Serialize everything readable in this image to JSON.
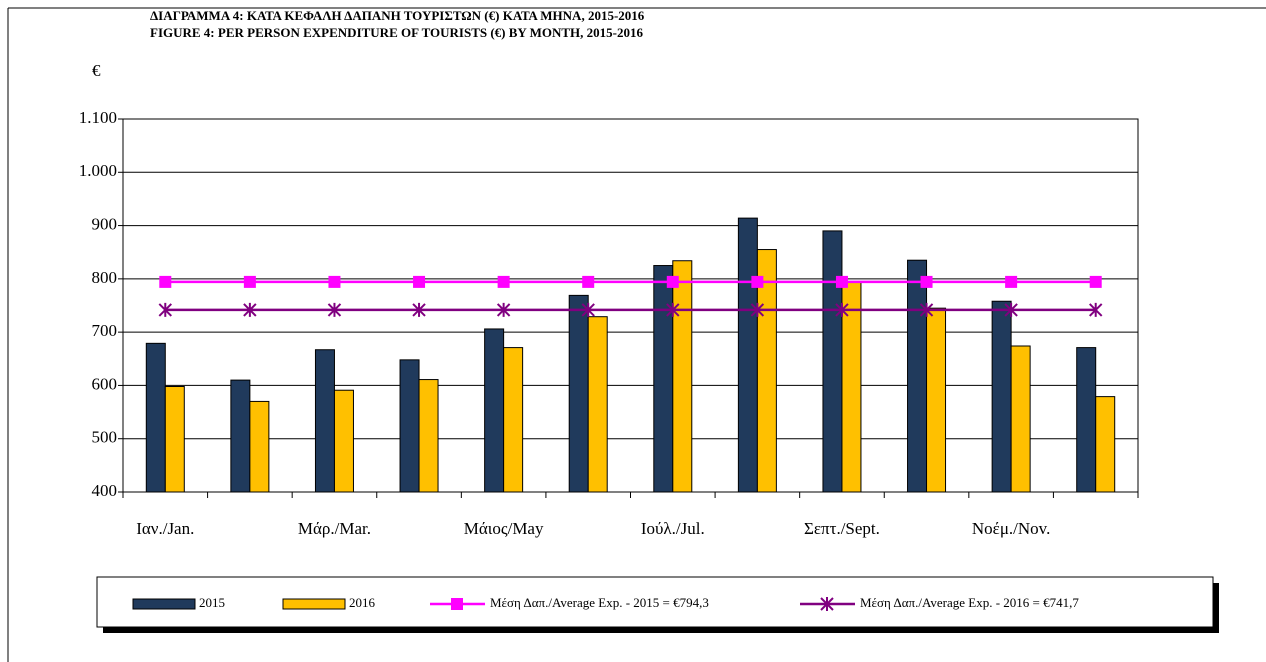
{
  "chart_data": {
    "type": "bar",
    "title": "ΔΙΑΓΡΑΜΜΑ 4:  ΚΑΤΑ ΚΕΦΑΛΗ ΔΑΠΑΝΗ ΤΟΥΡΙΣΤΩΝ (€) ΚΑΤΑ ΜΗΝΑ,  2015-2016",
    "subtitle": "FIGURE       4:  PER PERSON EXPENDITURE OF TOURISTS (€) BY MONTH,  2015-2016",
    "y_label": "€",
    "categories": [
      "Ιαν./Jan.",
      null,
      "Μάρ./Mar.",
      null,
      "Μάιος/May",
      null,
      "Ιούλ./Jul.",
      null,
      "Σεπτ./Sept.",
      null,
      "Νοέμ./Nov.",
      null
    ],
    "series": [
      {
        "name": "2015",
        "type": "bar",
        "color": "#203a5c",
        "values": [
          679,
          610,
          667,
          648,
          706,
          769,
          825,
          914,
          890,
          835,
          758,
          671
        ]
      },
      {
        "name": "2016",
        "type": "bar",
        "color": "#ffc000",
        "values": [
          598,
          570,
          591,
          611,
          671,
          729,
          834,
          855,
          795,
          745,
          674,
          579
        ]
      },
      {
        "name": "Μέση Δαπ./Average Exp. - 2015 = €794,3",
        "type": "line",
        "marker": "square",
        "color": "#ff00ff",
        "values": [
          794.3,
          794.3,
          794.3,
          794.3,
          794.3,
          794.3,
          794.3,
          794.3,
          794.3,
          794.3,
          794.3,
          794.3
        ]
      },
      {
        "name": "Μέση Δαπ./Average Exp. - 2016 = €741,7",
        "type": "line",
        "marker": "star",
        "color": "#800080",
        "values": [
          741.7,
          741.7,
          741.7,
          741.7,
          741.7,
          741.7,
          741.7,
          741.7,
          741.7,
          741.7,
          741.7,
          741.7
        ]
      }
    ],
    "ylim": [
      400,
      1100
    ],
    "yticks": [
      400,
      500,
      600,
      700,
      800,
      900,
      {
        "value": 1000,
        "label": "1.000"
      },
      {
        "value": 1100,
        "label": "1.100"
      }
    ],
    "grid": true,
    "legend": "bottom"
  }
}
